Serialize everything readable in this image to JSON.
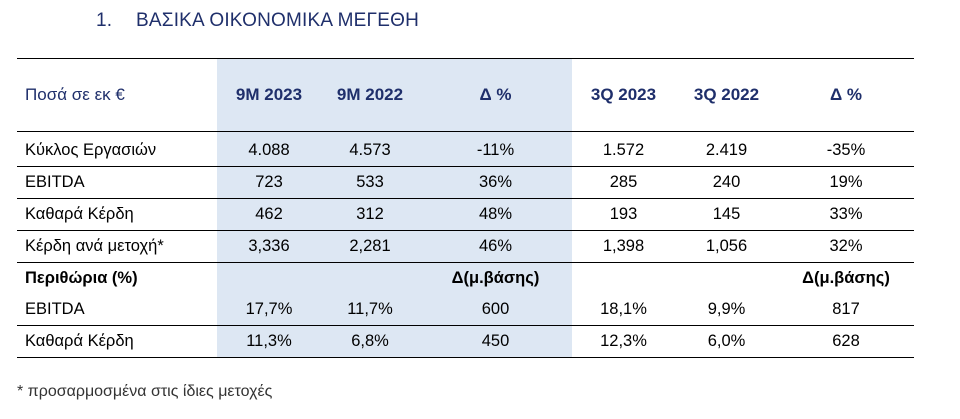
{
  "heading": {
    "number": "1.",
    "title": "ΒΑΣΙΚΑ ΟΙΚΟΝΟΜΙΚΑ ΜΕΓΕΘΗ"
  },
  "table": {
    "header": [
      "Ποσά σε εκ €",
      "9M 2023",
      "9M 2022",
      "Δ %",
      "3Q 2023",
      "3Q 2022",
      "Δ %"
    ],
    "rows": [
      [
        "Κύκλος Εργασιών",
        "4.088",
        "4.573",
        "-11%",
        "1.572",
        "2.419",
        "-35%"
      ],
      [
        "EBITDA",
        "723",
        "533",
        "36%",
        "285",
        "240",
        "19%"
      ],
      [
        "Καθαρά Κέρδη",
        "462",
        "312",
        "48%",
        "193",
        "145",
        "33%"
      ],
      [
        "Κέρδη ανά μετοχή*",
        "3,336",
        "2,281",
        "46%",
        "1,398",
        "1,056",
        "32%"
      ]
    ],
    "section": [
      "Περιθώρια (%)",
      "",
      "",
      "Δ(μ.βάσης)",
      "",
      "",
      "Δ(μ.βάσης)"
    ],
    "margin_rows": [
      [
        "EBITDA",
        "17,7%",
        "11,7%",
        "600",
        "18,1%",
        "9,9%",
        "817"
      ],
      [
        "Καθαρά Κέρδη",
        "11,3%",
        "6,8%",
        "450",
        "12,3%",
        "6,0%",
        "628"
      ]
    ]
  },
  "footnote": "* προσαρμοσμένα στις ίδιες μετοχές"
}
